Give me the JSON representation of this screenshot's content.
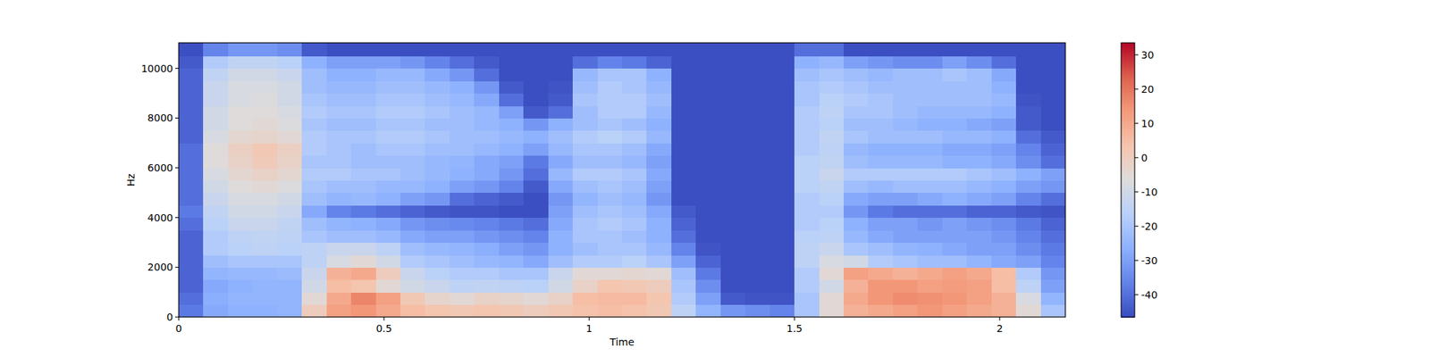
{
  "chart_data": {
    "type": "heatmap",
    "xlabel": "Time",
    "ylabel": "Hz",
    "xlim": [
      0,
      2.16
    ],
    "ylim": [
      0,
      11025
    ],
    "xticks": [
      0,
      0.5,
      1,
      1.5,
      2
    ],
    "yticks": [
      0,
      2000,
      4000,
      6000,
      8000,
      10000
    ],
    "time_bins": [
      0,
      0.06,
      0.12,
      0.18,
      0.24,
      0.3,
      0.36,
      0.42,
      0.48,
      0.54,
      0.6,
      0.66,
      0.72,
      0.78,
      0.84,
      0.9,
      0.96,
      1.02,
      1.08,
      1.14,
      1.2,
      1.26,
      1.32,
      1.38,
      1.44,
      1.5,
      1.56,
      1.62,
      1.68,
      1.74,
      1.8,
      1.86,
      1.92,
      1.98,
      2.04,
      2.1,
      2.16
    ],
    "freq_bins": [
      0,
      500,
      1000,
      1500,
      2000,
      2500,
      3000,
      3500,
      4000,
      4500,
      5000,
      5500,
      6000,
      6500,
      7000,
      7500,
      8000,
      8500,
      9000,
      9500,
      10000,
      10500,
      11025
    ],
    "cells": [
      [
        -38,
        -28,
        -26,
        -26,
        -25,
        0,
        12,
        14,
        10,
        5,
        3,
        2,
        3,
        2,
        0,
        2,
        4,
        5,
        4,
        2,
        -15,
        -25,
        -32,
        -34,
        -36,
        -20,
        -5,
        8,
        10,
        12,
        14,
        12,
        10,
        8,
        -5,
        -20
      ],
      [
        -40,
        -27,
        -25,
        -25,
        -25,
        -5,
        10,
        17,
        12,
        2,
        -3,
        -5,
        -2,
        -3,
        -5,
        -2,
        5,
        6,
        6,
        3,
        -18,
        -30,
        -44,
        -45,
        -45,
        -20,
        -5,
        10,
        14,
        16,
        15,
        14,
        12,
        8,
        -8,
        -25
      ],
      [
        -42,
        -28,
        -26,
        -25,
        -25,
        -10,
        5,
        3,
        -5,
        -10,
        -12,
        -15,
        -14,
        -15,
        -16,
        -10,
        -2,
        3,
        2,
        0,
        -20,
        -34,
        -46,
        -46,
        -46,
        -18,
        -10,
        8,
        14,
        14,
        12,
        13,
        12,
        5,
        -15,
        -30
      ],
      [
        -42,
        -25,
        -24,
        -24,
        -23,
        -12,
        8,
        10,
        0,
        -12,
        -16,
        -18,
        -18,
        -20,
        -20,
        -12,
        -5,
        -5,
        -4,
        -5,
        -22,
        -38,
        -46,
        -46,
        -46,
        -18,
        -5,
        12,
        10,
        8,
        10,
        12,
        10,
        5,
        -18,
        -32
      ],
      [
        -42,
        -22,
        -20,
        -20,
        -20,
        -15,
        -8,
        -5,
        -10,
        -18,
        -20,
        -22,
        -24,
        -25,
        -28,
        -22,
        -18,
        -18,
        -16,
        -20,
        -30,
        -42,
        -46,
        -46,
        -46,
        -15,
        -8,
        -10,
        -18,
        -20,
        -22,
        -22,
        -25,
        -28,
        -30,
        -36
      ],
      [
        -42,
        -18,
        -16,
        -15,
        -16,
        -15,
        -12,
        -12,
        -15,
        -22,
        -24,
        -25,
        -27,
        -30,
        -32,
        -26,
        -22,
        -20,
        -20,
        -24,
        -36,
        -45,
        -46,
        -46,
        -46,
        -15,
        -12,
        -20,
        -22,
        -25,
        -26,
        -28,
        -30,
        -30,
        -34,
        -38
      ],
      [
        -42,
        -18,
        -15,
        -14,
        -15,
        -20,
        -22,
        -22,
        -24,
        -28,
        -30,
        -30,
        -32,
        -34,
        -36,
        -26,
        -20,
        -20,
        -22,
        -26,
        -40,
        -46,
        -46,
        -46,
        -46,
        -16,
        -15,
        -24,
        -28,
        -30,
        -30,
        -30,
        -30,
        -32,
        -36,
        -40
      ],
      [
        -40,
        -16,
        -12,
        -12,
        -14,
        -22,
        -25,
        -26,
        -28,
        -32,
        -34,
        -35,
        -36,
        -38,
        -40,
        -28,
        -20,
        -18,
        -20,
        -26,
        -42,
        -46,
        -46,
        -46,
        -46,
        -18,
        -16,
        -26,
        -30,
        -30,
        -32,
        -30,
        -32,
        -34,
        -38,
        -42
      ],
      [
        -38,
        -14,
        -10,
        -10,
        -12,
        -28,
        -36,
        -38,
        -40,
        -42,
        -44,
        -45,
        -45,
        -46,
        -46,
        -30,
        -22,
        -20,
        -22,
        -28,
        -44,
        -46,
        -46,
        -46,
        -46,
        -18,
        -18,
        -32,
        -38,
        -40,
        -40,
        -40,
        -42,
        -42,
        -44,
        -45
      ],
      [
        -40,
        -12,
        -8,
        -8,
        -10,
        -22,
        -25,
        -24,
        -26,
        -30,
        -32,
        -40,
        -42,
        -44,
        -46,
        -32,
        -25,
        -22,
        -24,
        -32,
        -46,
        -46,
        -46,
        -46,
        -46,
        -18,
        -16,
        -28,
        -30,
        -30,
        -28,
        -26,
        -28,
        -30,
        -36,
        -40
      ],
      [
        -40,
        -10,
        -6,
        -5,
        -7,
        -20,
        -22,
        -22,
        -24,
        -24,
        -26,
        -30,
        -32,
        -36,
        -44,
        -28,
        -22,
        -20,
        -22,
        -30,
        -46,
        -46,
        -46,
        -46,
        -46,
        -16,
        -14,
        -22,
        -24,
        -22,
        -22,
        -22,
        -24,
        -26,
        -30,
        -32
      ],
      [
        -40,
        -8,
        -4,
        -2,
        -4,
        -18,
        -18,
        -20,
        -20,
        -22,
        -24,
        -26,
        -28,
        -32,
        -40,
        -24,
        -18,
        -18,
        -20,
        -28,
        -46,
        -46,
        -46,
        -46,
        -46,
        -16,
        -12,
        -18,
        -18,
        -18,
        -18,
        -18,
        -20,
        -22,
        -26,
        -30
      ],
      [
        -40,
        -6,
        -2,
        1,
        -2,
        -20,
        -20,
        -22,
        -22,
        -22,
        -24,
        -25,
        -28,
        -30,
        -38,
        -28,
        -22,
        -22,
        -24,
        -30,
        -46,
        -46,
        -46,
        -46,
        -46,
        -16,
        -14,
        -22,
        -24,
        -24,
        -24,
        -26,
        -26,
        -28,
        -34,
        -40
      ],
      [
        -40,
        -6,
        -1,
        2,
        -1,
        -18,
        -20,
        -22,
        -20,
        -20,
        -22,
        -22,
        -24,
        -26,
        -30,
        -24,
        -20,
        -20,
        -22,
        -28,
        -46,
        -46,
        -46,
        -46,
        -46,
        -18,
        -15,
        -24,
        -26,
        -26,
        -26,
        -28,
        -28,
        -30,
        -36,
        -42
      ],
      [
        -42,
        -8,
        -4,
        -3,
        -5,
        -18,
        -20,
        -20,
        -18,
        -18,
        -20,
        -22,
        -22,
        -24,
        -26,
        -22,
        -18,
        -16,
        -18,
        -24,
        -46,
        -46,
        -46,
        -46,
        -46,
        -18,
        -14,
        -20,
        -22,
        -22,
        -22,
        -24,
        -24,
        -26,
        -40,
        -44
      ],
      [
        -42,
        -10,
        -6,
        -5,
        -7,
        -20,
        -22,
        -22,
        -20,
        -20,
        -22,
        -22,
        -24,
        -26,
        -32,
        -26,
        -22,
        -20,
        -22,
        -26,
        -46,
        -46,
        -46,
        -46,
        -46,
        -18,
        -16,
        -22,
        -22,
        -24,
        -26,
        -26,
        -28,
        -30,
        -44,
        -46
      ],
      [
        -42,
        -10,
        -6,
        -6,
        -8,
        -18,
        -20,
        -20,
        -18,
        -18,
        -20,
        -22,
        -24,
        -30,
        -44,
        -40,
        -22,
        -18,
        -18,
        -24,
        -46,
        -46,
        -46,
        -46,
        -46,
        -18,
        -15,
        -20,
        -20,
        -22,
        -24,
        -24,
        -24,
        -26,
        -44,
        -46
      ],
      [
        -42,
        -12,
        -8,
        -7,
        -10,
        -20,
        -22,
        -22,
        -20,
        -20,
        -22,
        -24,
        -28,
        -40,
        -46,
        -44,
        -20,
        -18,
        -18,
        -22,
        -46,
        -46,
        -46,
        -46,
        -46,
        -20,
        -16,
        -18,
        -20,
        -22,
        -22,
        -22,
        -22,
        -24,
        -45,
        -46
      ],
      [
        -42,
        -12,
        -8,
        -8,
        -10,
        -22,
        -24,
        -24,
        -22,
        -22,
        -24,
        -26,
        -32,
        -44,
        -46,
        -45,
        -22,
        -18,
        -20,
        -24,
        -46,
        -46,
        -46,
        -46,
        -46,
        -20,
        -18,
        -20,
        -22,
        -22,
        -22,
        -22,
        -22,
        -26,
        -46,
        -46
      ],
      [
        -42,
        -14,
        -10,
        -10,
        -12,
        -22,
        -26,
        -26,
        -24,
        -24,
        -28,
        -32,
        -40,
        -46,
        -46,
        -46,
        -24,
        -20,
        -20,
        -26,
        -46,
        -46,
        -46,
        -46,
        -46,
        -22,
        -20,
        -22,
        -24,
        -22,
        -22,
        -20,
        -22,
        -28,
        -46,
        -46
      ],
      [
        -44,
        -18,
        -14,
        -14,
        -16,
        -26,
        -30,
        -30,
        -30,
        -32,
        -36,
        -40,
        -44,
        -46,
        -46,
        -46,
        -40,
        -36,
        -38,
        -42,
        -46,
        -46,
        -46,
        -46,
        -46,
        -26,
        -24,
        -30,
        -32,
        -34,
        -34,
        -30,
        -34,
        -40,
        -46,
        -46
      ],
      [
        -46,
        -36,
        -32,
        -32,
        -34,
        -44,
        -46,
        -46,
        -46,
        -46,
        -46,
        -46,
        -46,
        -46,
        -46,
        -46,
        -46,
        -46,
        -46,
        -46,
        -46,
        -46,
        -46,
        -46,
        -46,
        -40,
        -40,
        -46,
        -46,
        -46,
        -46,
        -46,
        -46,
        -46,
        -46,
        -46
      ]
    ],
    "colorbar": {
      "range": [
        -46.5,
        33.5
      ],
      "ticks": [
        -40,
        -30,
        -20,
        -10,
        0,
        10,
        20,
        30
      ]
    }
  }
}
